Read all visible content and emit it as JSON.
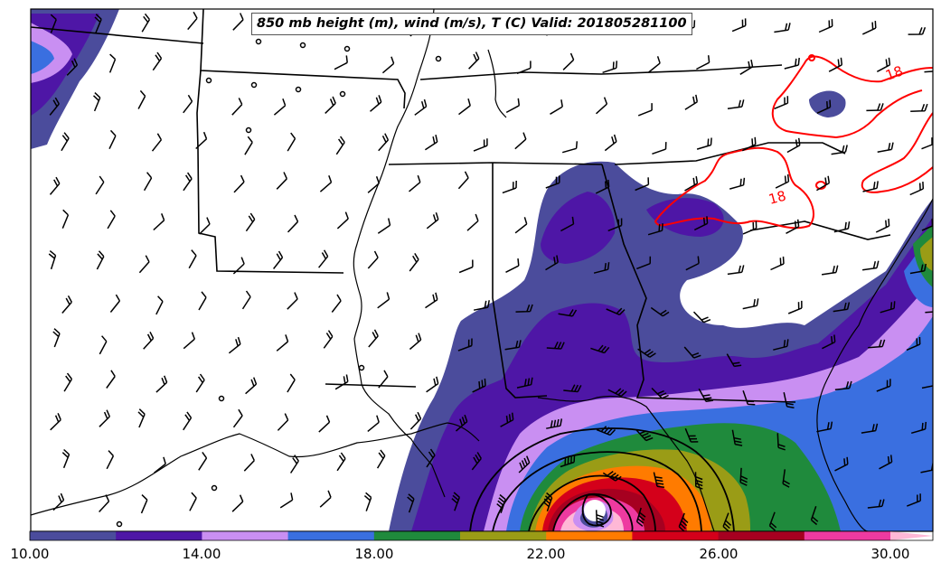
{
  "title": "850 mb height (m), wind (m/s), T (C) Valid: 201805281100",
  "contour_labels": [
    "18",
    "18"
  ],
  "colorbar": {
    "ticks": [
      "10.00",
      "14.00",
      "18.00",
      "22.00",
      "26.00",
      "30.00"
    ],
    "levels": [
      10,
      12,
      14,
      16,
      18,
      20,
      22,
      24,
      26,
      28,
      30
    ],
    "colors": [
      "#4b4c9c",
      "#4e16a6",
      "#c98ff2",
      "#3a6fe0",
      "#1f8a3c",
      "#9a9c16",
      "#ff7b00",
      "#d4001a",
      "#a60020",
      "#ee3aa0",
      "#ffb8d6"
    ]
  }
}
